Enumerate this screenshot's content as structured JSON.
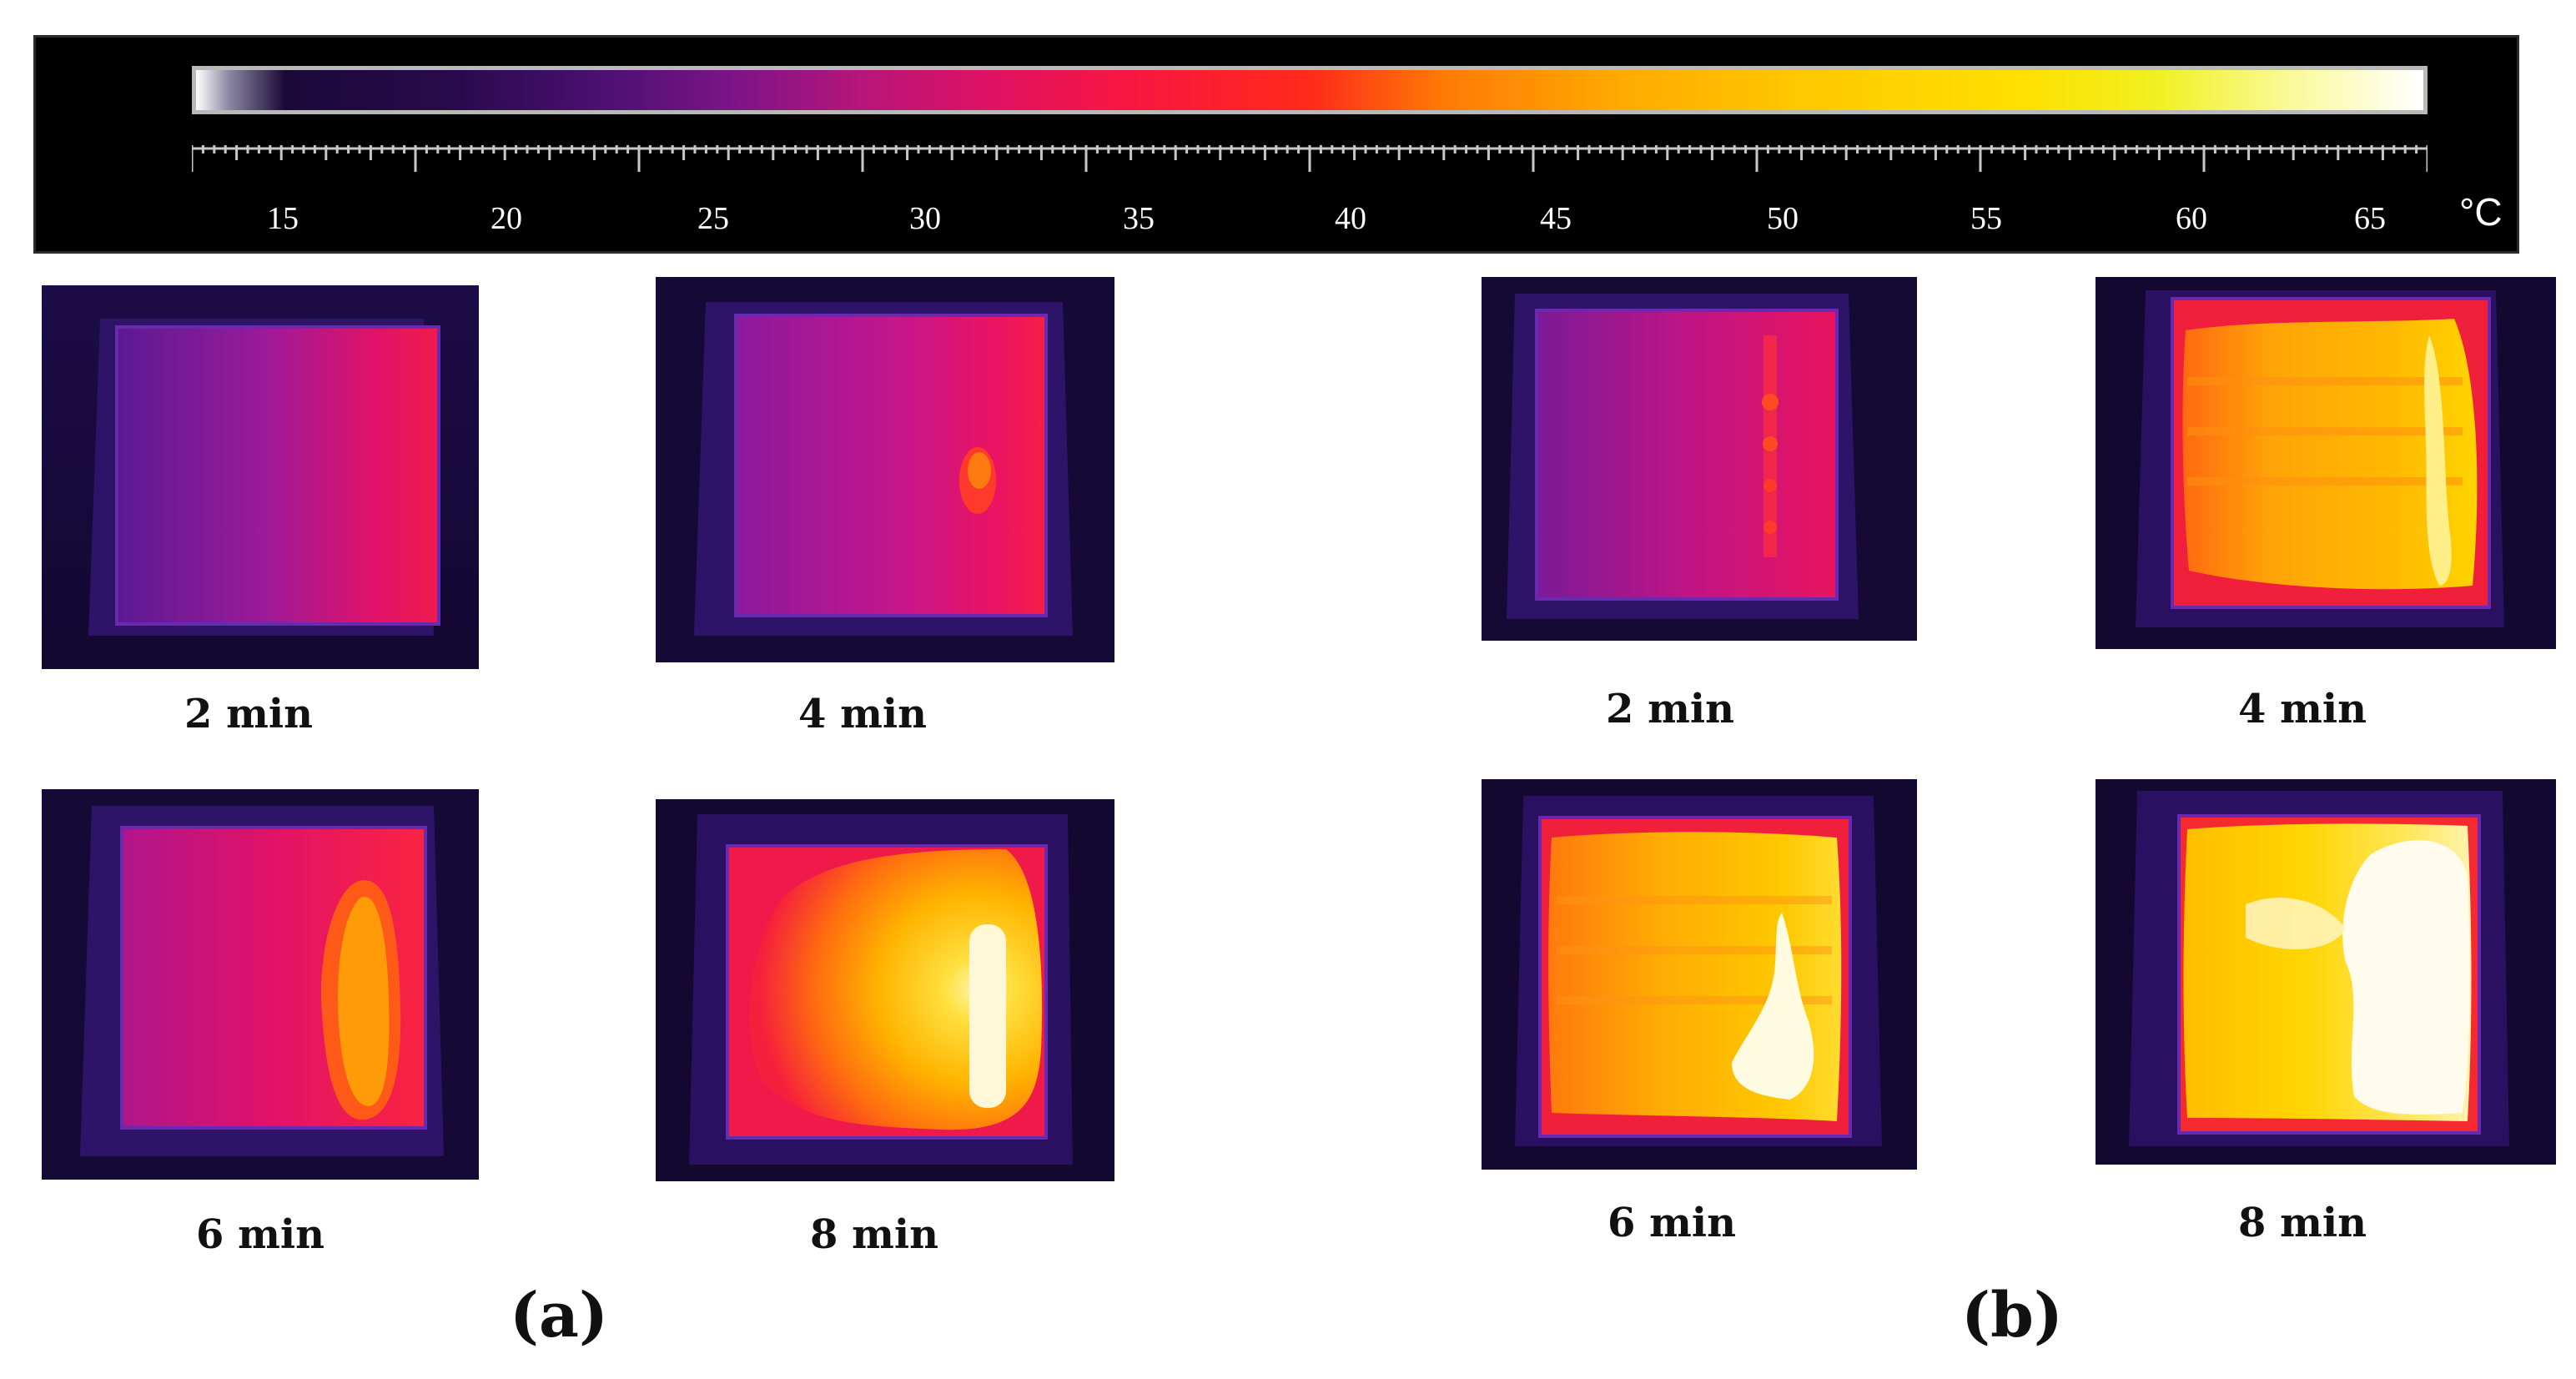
{
  "colorbar": {
    "ticks": [
      "15",
      "20",
      "25",
      "30",
      "35",
      "40",
      "45",
      "50",
      "55",
      "60",
      "65"
    ],
    "unit": "°C",
    "range": [
      15,
      65
    ]
  },
  "panels": [
    {
      "label": "(a)",
      "images": [
        {
          "caption": "2 min"
        },
        {
          "caption": "4 min"
        },
        {
          "caption": "6 min"
        },
        {
          "caption": "8 min"
        }
      ]
    },
    {
      "label": "(b)",
      "images": [
        {
          "caption": "2 min"
        },
        {
          "caption": "4 min"
        },
        {
          "caption": "6 min"
        },
        {
          "caption": "8 min"
        }
      ]
    }
  ],
  "colors": {
    "background": "#ffffff",
    "scale_background": "#000000",
    "cold": "#1a0a4a",
    "warm": "#ff1f4f",
    "hot": "#ffd400",
    "hottest": "#fffbe0"
  }
}
